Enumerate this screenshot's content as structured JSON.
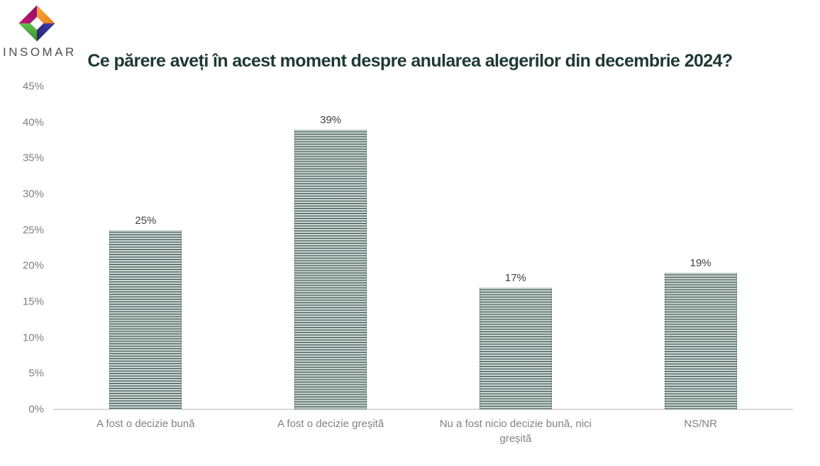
{
  "logo": {
    "text": "INSOMAR",
    "mark_colors": {
      "magenta": "#c4157d",
      "magenta_dark": "#8e1059",
      "orange": "#f79a2e",
      "orange_dark": "#ec7d10",
      "blue": "#37349c",
      "blue_dark": "#262270",
      "green": "#54b843",
      "green_dark": "#3c9030"
    }
  },
  "colors": {
    "title": "#1d3a35",
    "axis_label": "#7f7f7f",
    "data_label": "#3f3f3f",
    "category_label": "#828282",
    "axis_line": "#d9d9d9",
    "bar_stripe_light": "#c7d1cd",
    "bar_stripe_dark": "#2e4c45"
  },
  "chart_data": {
    "type": "bar",
    "title": "Ce părere aveți în acest moment despre anularea alegerilor din decembrie 2024?",
    "categories": [
      "A fost o decizie bună",
      "A fost o decizie greșită",
      "Nu a fost nicio decizie bună, nici greșită",
      "NS/NR"
    ],
    "values": [
      25,
      39,
      17,
      19
    ],
    "data_labels": [
      "25%",
      "39%",
      "17%",
      "19%"
    ],
    "xlabel": "",
    "ylabel": "",
    "ylim": [
      0,
      45
    ],
    "ytick_values": [
      0,
      5,
      10,
      15,
      20,
      25,
      30,
      35,
      40,
      45
    ],
    "ytick_labels": [
      "0%",
      "5%",
      "10%",
      "15%",
      "20%",
      "25%",
      "30%",
      "35%",
      "40%",
      "45%"
    ],
    "grid": false,
    "legend": null,
    "bar_fill": "horizontal-stripes"
  }
}
